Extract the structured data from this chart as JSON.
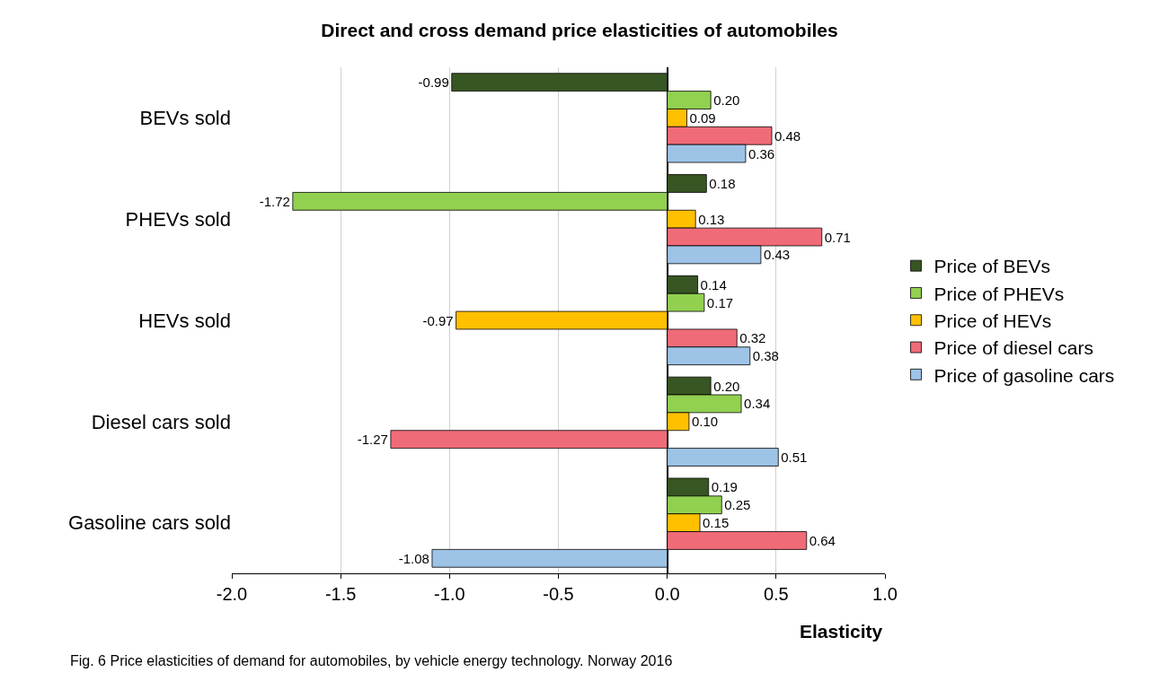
{
  "chart_data": {
    "type": "bar",
    "orientation": "horizontal",
    "title": "Direct and cross demand price elasticities of automobiles",
    "xlabel": "Elasticity",
    "categories": [
      "BEVs sold",
      "PHEVs sold",
      "HEVs sold",
      "Diesel cars sold",
      "Gasoline cars sold"
    ],
    "series": [
      {
        "name": "Price of BEVs",
        "color": "#375623",
        "values": [
          -0.99,
          0.18,
          0.14,
          0.2,
          0.19
        ],
        "value_labels": [
          "-0.99",
          "0.18",
          "0.14",
          "0.20",
          "0.19"
        ]
      },
      {
        "name": "Price of PHEVs",
        "color": "#92d050",
        "values": [
          0.2,
          -1.72,
          0.17,
          0.34,
          0.25
        ],
        "value_labels": [
          "0.20",
          "-1.72",
          "0.17",
          "0.34",
          "0.25"
        ]
      },
      {
        "name": "Price of HEVs",
        "color": "#ffc000",
        "values": [
          0.09,
          0.13,
          -0.97,
          0.1,
          0.15
        ],
        "value_labels": [
          "0.09",
          "0.13",
          "-0.97",
          "0.10",
          "0.15"
        ]
      },
      {
        "name": "Price of diesel cars",
        "color": "#f06b78",
        "values": [
          0.48,
          0.71,
          0.32,
          -1.27,
          0.64
        ],
        "value_labels": [
          "0.48",
          "0.71",
          "0.32",
          "-1.27",
          "0.64"
        ]
      },
      {
        "name": "Price of gasoline cars",
        "color": "#9dc3e6",
        "values": [
          0.36,
          0.43,
          0.38,
          0.51,
          -1.08
        ],
        "value_labels": [
          "0.36",
          "0.43",
          "0.38",
          "0.51",
          "-1.08"
        ]
      }
    ],
    "xlim": [
      -2.0,
      1.0
    ],
    "xticks": [
      {
        "value": -2.0,
        "label": "-2.0"
      },
      {
        "value": -1.5,
        "label": "-1.5"
      },
      {
        "value": -1.0,
        "label": "-1.0"
      },
      {
        "value": -0.5,
        "label": "-0.5"
      },
      {
        "value": 0.0,
        "label": "0.0"
      },
      {
        "value": 0.5,
        "label": "0.5"
      },
      {
        "value": 1.0,
        "label": "1.0"
      }
    ],
    "grid": "x",
    "legend": "right",
    "annotations": [
      "Fig. 6 Price elasticities of demand for automobiles, by vehicle energy technology. Norway 2016"
    ]
  }
}
